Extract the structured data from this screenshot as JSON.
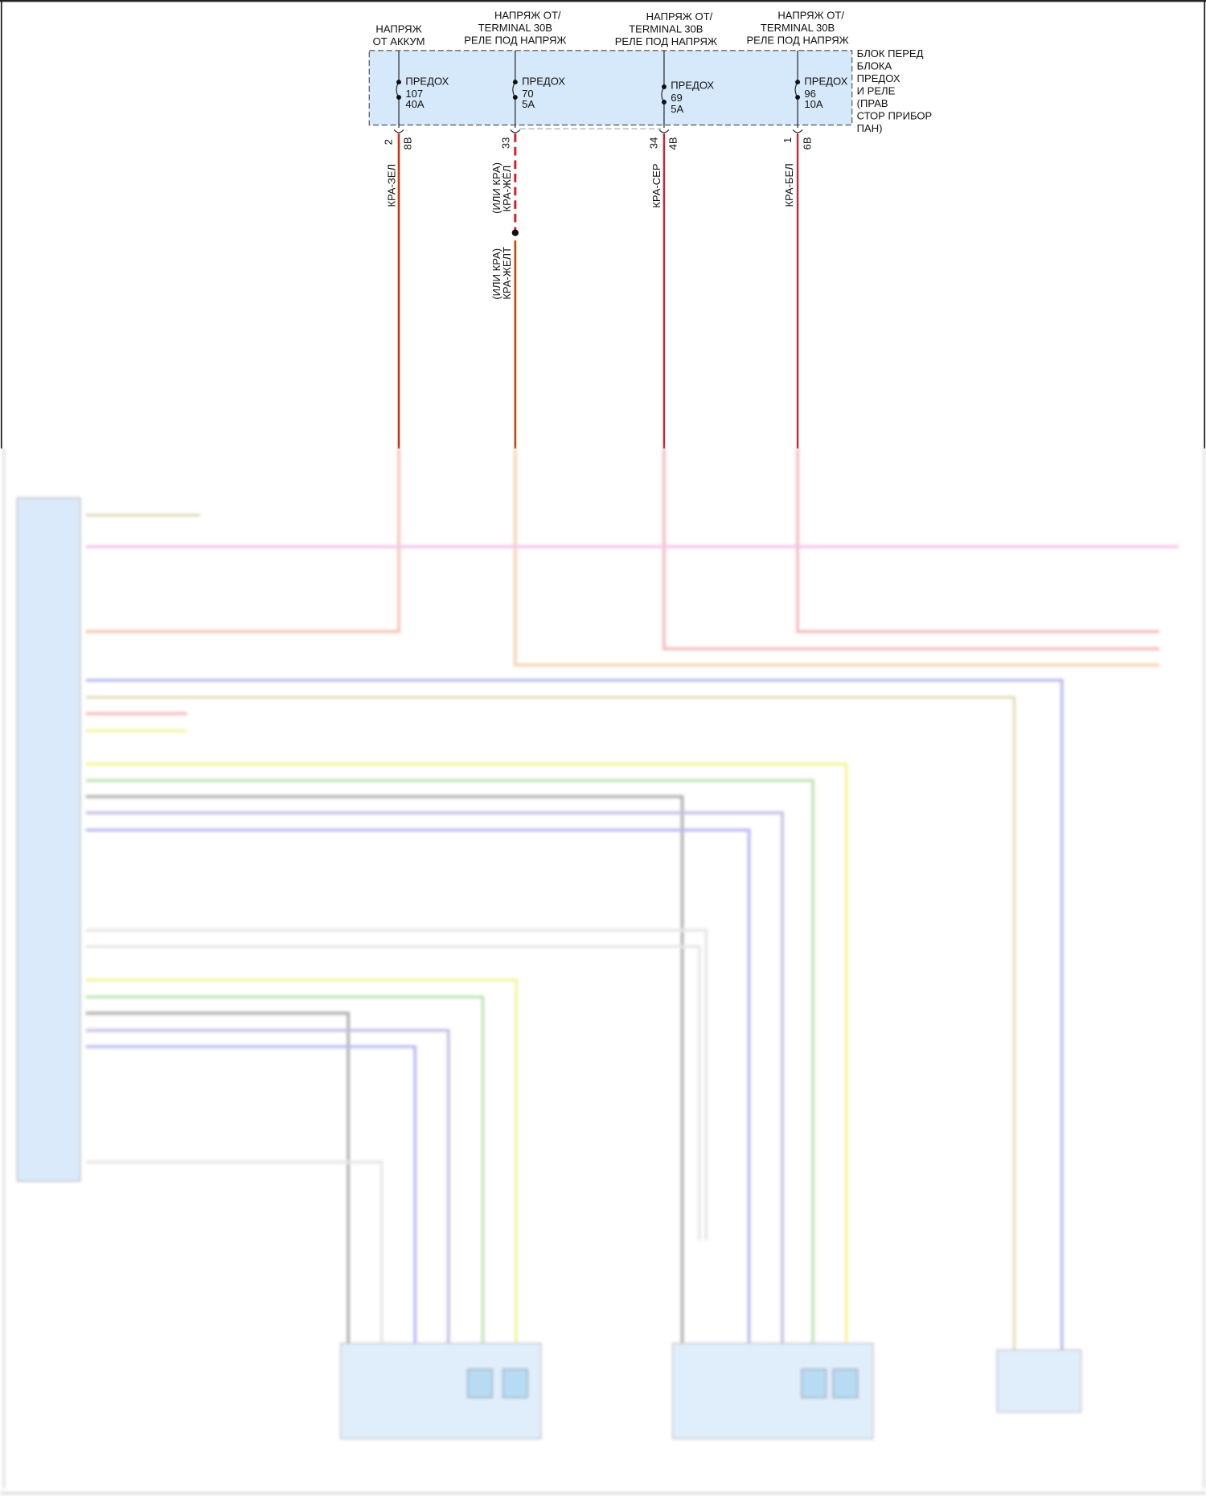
{
  "sources": [
    {
      "lines": [
        "НАПРЯЖ",
        "ОТ АККУМ"
      ]
    },
    {
      "lines": [
        "НАПРЯЖ ОТ/",
        "TERMINAL 30B",
        "РЕЛЕ ПОД НАПРЯЖ"
      ]
    },
    {
      "lines": [
        "НАПРЯЖ ОТ/",
        "TERMINAL 30B",
        "РЕЛЕ ПОД НАПРЯЖ"
      ]
    },
    {
      "lines": [
        "НАПРЯЖ ОТ/",
        "TERMINAL 30B",
        "РЕЛЕ ПОД НАПРЯЖ"
      ]
    }
  ],
  "fuse_block": {
    "lines": [
      "БЛОК ПЕРЕД",
      "БЛОКА",
      "ПРЕДОХ",
      "И РЕЛЕ",
      "(ПРАВ",
      "СТОР ПРИБОР",
      "ПАН)"
    ]
  },
  "fuses": [
    {
      "label": "ПРЕДОХ",
      "number": "107",
      "rating": "40A",
      "pin": "2",
      "connector": "8B",
      "wire": "КРА-ЗЕЛ"
    },
    {
      "label": "ПРЕДОХ",
      "number": "70",
      "rating": "5A",
      "pin": "33",
      "connector": "",
      "wire": "КРА-ЖЁЛ",
      "wire_alt": "(ИЛИ КРА)",
      "wire2": "КРА-ЖЕЛТ",
      "wire2_alt": "(ИЛИ КРА)"
    },
    {
      "label": "ПРЕДОХ",
      "number": "69",
      "rating": "5A",
      "pin": "34",
      "connector": "4B",
      "wire": "КРА-СЕР"
    },
    {
      "label": "ПРЕДОХ",
      "number": "96",
      "rating": "10A",
      "pin": "1",
      "connector": "6B",
      "wire": "КРА-БЕЛ"
    }
  ],
  "colors": {
    "fuse_block_fill": "#d6e9fb",
    "wire_red": "#d2202a",
    "wire_orange": "#f0a070",
    "wire_blue": "#8f8ff0",
    "wire_yellow": "#f0f070",
    "wire_green": "#9fd08a",
    "wire_gray": "#8a8a8a",
    "wire_pink": "#f0b0e0",
    "wire_tan": "#d8cfa0"
  },
  "lower_section": {
    "blurred": true
  }
}
